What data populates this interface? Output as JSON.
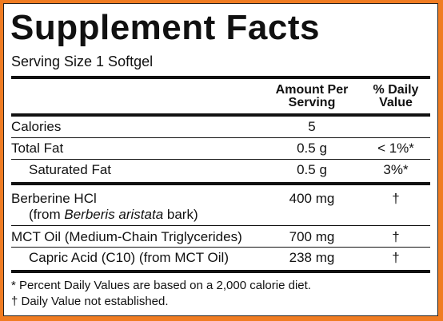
{
  "title": "Supplement Facts",
  "serving_size": "Serving Size 1 Softgel",
  "header": {
    "amount": "Amount Per Serving",
    "daily_value": "% Daily Value"
  },
  "rows": [
    {
      "name": "Calories",
      "amount": "5",
      "dv": ""
    },
    {
      "name": "Total Fat",
      "amount": "0.5 g",
      "dv": "< 1%*"
    },
    {
      "name": "Saturated Fat",
      "amount": "0.5 g",
      "dv": "3%*"
    },
    {
      "name": "Berberine HCl",
      "source": [
        "(from ",
        "Berberis aristata",
        " bark)"
      ],
      "amount": "400 mg",
      "dv": "†"
    },
    {
      "name": "MCT Oil (Medium-Chain Triglycerides)",
      "amount": "700 mg",
      "dv": "†"
    },
    {
      "name": "Capric Acid (C10) (from MCT Oil)",
      "amount": "238 mg",
      "dv": "†"
    }
  ],
  "footnotes": [
    "* Percent Daily Values are based on a 2,000 calorie diet.",
    "† Daily Value not established."
  ]
}
